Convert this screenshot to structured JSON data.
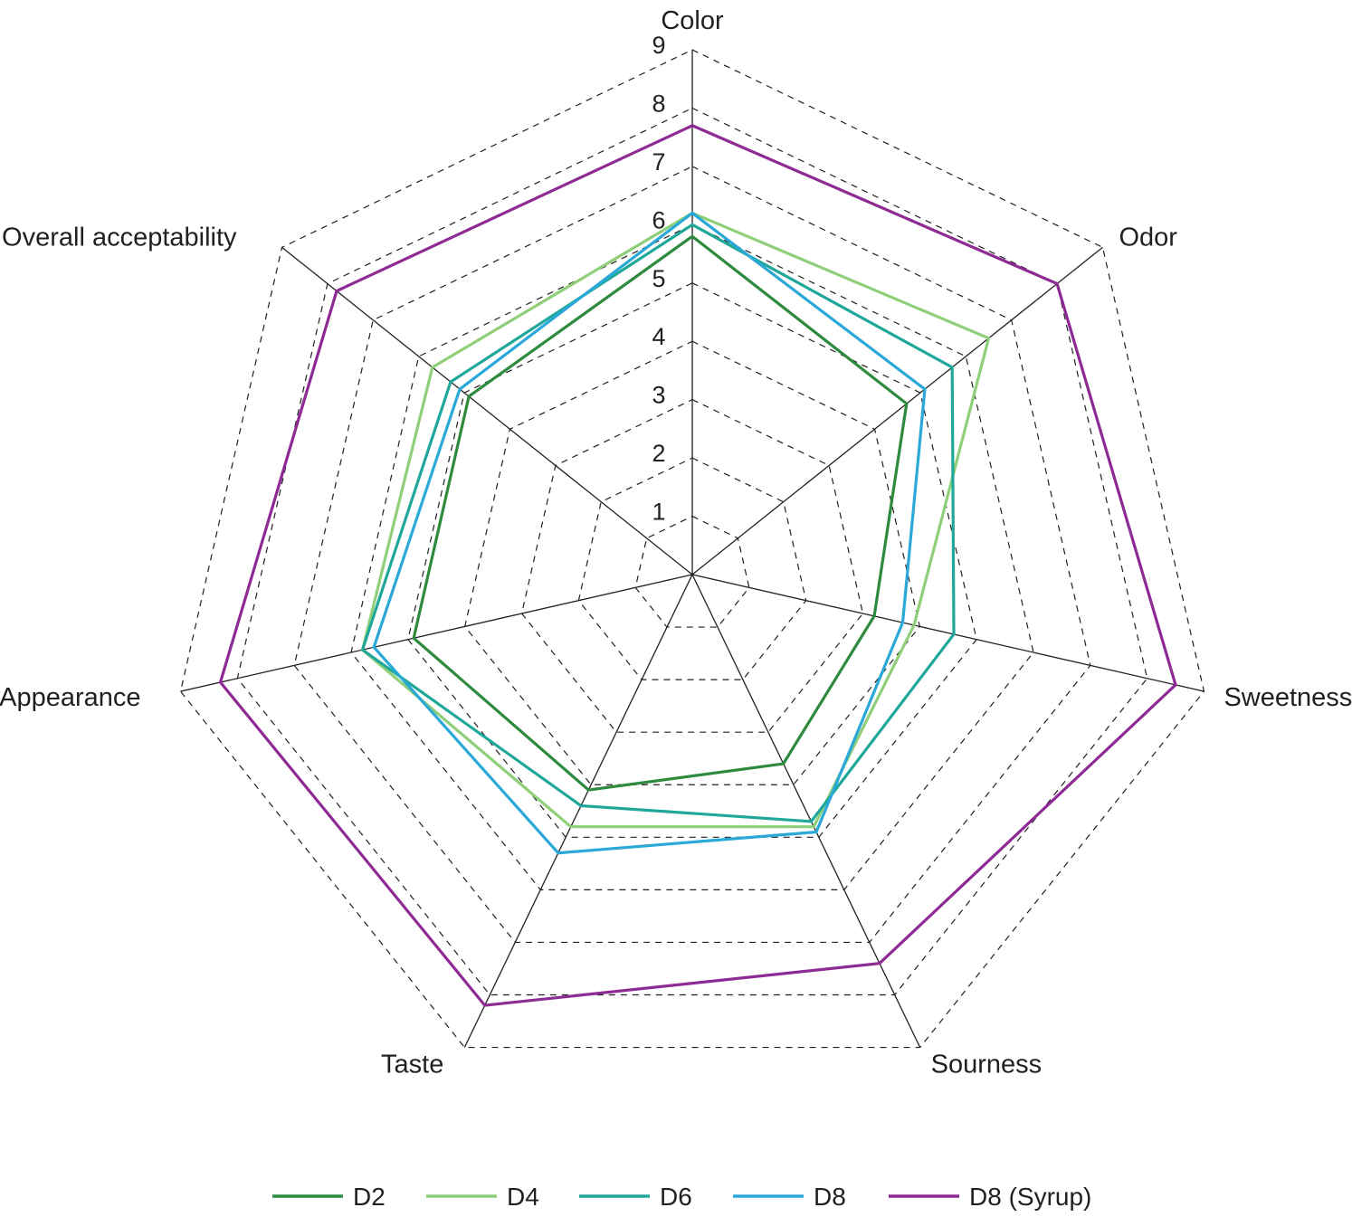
{
  "chart_data": {
    "type": "radar",
    "axes": [
      "Color",
      "Odor",
      "Sweetness",
      "Sourness",
      "Taste",
      "Appearance",
      "Overall acceptability"
    ],
    "scale": {
      "min": 0,
      "max": 9,
      "ticks": [
        1,
        2,
        3,
        4,
        5,
        6,
        7,
        8,
        9
      ]
    },
    "grid": "dashed",
    "legend_position": "bottom",
    "series": [
      {
        "name": "D2",
        "color": "#2e8b3e",
        "values": [
          5.8,
          4.7,
          3.2,
          3.6,
          4.1,
          4.9,
          4.9
        ]
      },
      {
        "name": "D4",
        "color": "#8fcf7a",
        "values": [
          6.2,
          6.5,
          3.9,
          4.8,
          4.8,
          5.8,
          5.7
        ]
      },
      {
        "name": "D6",
        "color": "#1fa89a",
        "values": [
          6.0,
          5.7,
          4.6,
          4.7,
          4.4,
          5.8,
          5.3
        ]
      },
      {
        "name": "D8",
        "color": "#2aa8d8",
        "values": [
          6.2,
          5.1,
          3.7,
          4.9,
          5.3,
          5.6,
          5.1
        ]
      },
      {
        "name": "D8 (Syrup)",
        "color": "#8e2a94",
        "values": [
          7.7,
          8.0,
          8.5,
          7.4,
          8.2,
          8.3,
          7.8
        ]
      }
    ]
  }
}
